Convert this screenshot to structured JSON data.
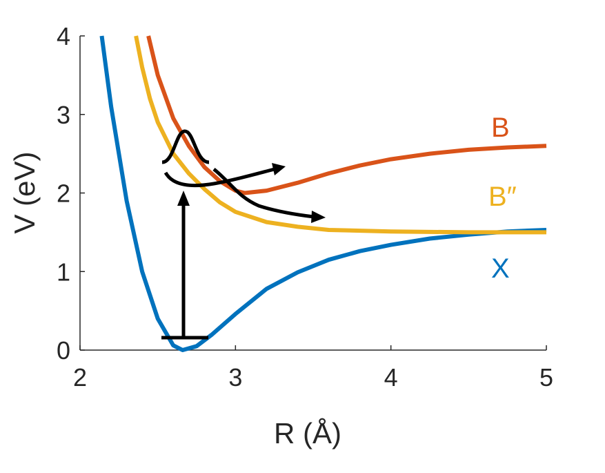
{
  "chart_data": {
    "type": "line",
    "xlabel": "R (Å)",
    "ylabel": "V (eV)",
    "xlim": [
      2,
      5
    ],
    "ylim": [
      0,
      4
    ],
    "xticks": [
      2,
      3,
      4,
      5
    ],
    "yticks": [
      0,
      1,
      2,
      3,
      4
    ],
    "series": [
      {
        "name": "X",
        "color": "#0072bd",
        "x": [
          2.14,
          2.2,
          2.3,
          2.4,
          2.5,
          2.6,
          2.66,
          2.75,
          2.85,
          3.0,
          3.2,
          3.4,
          3.6,
          3.8,
          4.0,
          4.25,
          4.5,
          4.75,
          5.0
        ],
        "values": [
          4.0,
          3.1,
          1.9,
          1.0,
          0.4,
          0.06,
          0.0,
          0.05,
          0.2,
          0.46,
          0.78,
          0.99,
          1.15,
          1.26,
          1.34,
          1.42,
          1.47,
          1.51,
          1.53
        ]
      },
      {
        "name": "B",
        "color": "#d95319",
        "x": [
          2.44,
          2.5,
          2.6,
          2.7,
          2.8,
          2.9,
          3.0,
          3.06,
          3.2,
          3.4,
          3.6,
          3.8,
          4.0,
          4.25,
          4.5,
          4.75,
          5.0
        ],
        "values": [
          4.0,
          3.5,
          2.95,
          2.6,
          2.33,
          2.15,
          2.03,
          2.0,
          2.03,
          2.13,
          2.25,
          2.35,
          2.43,
          2.5,
          2.55,
          2.58,
          2.6
        ]
      },
      {
        "name": "B″",
        "color": "#edb120",
        "x": [
          2.36,
          2.4,
          2.45,
          2.5,
          2.6,
          2.7,
          2.8,
          2.9,
          3.0,
          3.2,
          3.4,
          3.6,
          4.0,
          4.5,
          5.0
        ],
        "values": [
          4.0,
          3.6,
          3.2,
          2.9,
          2.5,
          2.25,
          2.05,
          1.88,
          1.76,
          1.63,
          1.57,
          1.53,
          1.51,
          1.5,
          1.5
        ]
      }
    ]
  }
}
